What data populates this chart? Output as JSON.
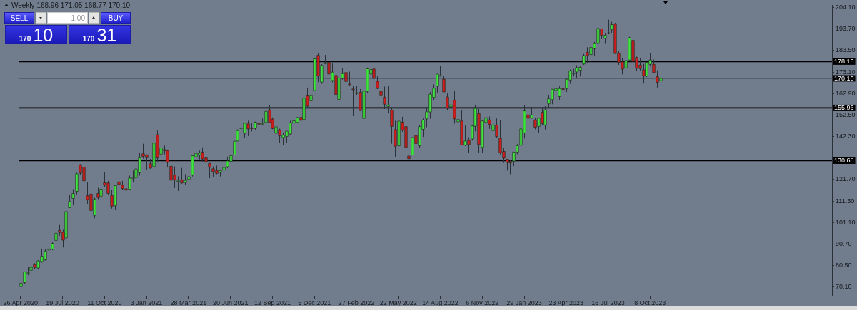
{
  "chart_data": {
    "type": "candlestick",
    "title": "Weekly 168.96 171.05 168.77 170.10",
    "annotations": [
      "SELL",
      "1.00",
      "BUY",
      "170",
      "10",
      "170",
      "31"
    ],
    "x": [
      "2020-04-26",
      "2020-05-03",
      "2020-05-10",
      "2020-05-17",
      "2020-05-24",
      "2020-05-31",
      "2020-06-07",
      "2020-06-14",
      "2020-06-21",
      "2020-06-28",
      "2020-07-05",
      "2020-07-12",
      "2020-07-19",
      "2020-07-26",
      "2020-08-02",
      "2020-08-09",
      "2020-08-16",
      "2020-08-23",
      "2020-08-30",
      "2020-09-06",
      "2020-09-13",
      "2020-09-20",
      "2020-09-27",
      "2020-10-04",
      "2020-10-11",
      "2020-10-18",
      "2020-10-25",
      "2020-11-01",
      "2020-11-08",
      "2020-11-15",
      "2020-11-22",
      "2020-11-29",
      "2020-12-06",
      "2020-12-13",
      "2020-12-20",
      "2020-12-27",
      "2021-01-03",
      "2021-01-10",
      "2021-01-17",
      "2021-01-24",
      "2021-01-31",
      "2021-02-07",
      "2021-02-14",
      "2021-02-21",
      "2021-02-28",
      "2021-03-07",
      "2021-03-14",
      "2021-03-21",
      "2021-03-28",
      "2021-04-04",
      "2021-04-11",
      "2021-04-18",
      "2021-04-25",
      "2021-05-02",
      "2021-05-09",
      "2021-05-16",
      "2021-05-23",
      "2021-05-30",
      "2021-06-06",
      "2021-06-13",
      "2021-06-20",
      "2021-06-27",
      "2021-07-04",
      "2021-07-11",
      "2021-07-18",
      "2021-07-25",
      "2021-08-01",
      "2021-08-08",
      "2021-08-15",
      "2021-08-22",
      "2021-08-29",
      "2021-09-05",
      "2021-09-12",
      "2021-09-19",
      "2021-09-26",
      "2021-10-03",
      "2021-10-10",
      "2021-10-17",
      "2021-10-24",
      "2021-10-31",
      "2021-11-07",
      "2021-11-14",
      "2021-11-21",
      "2021-11-28",
      "2021-12-05",
      "2021-12-12",
      "2021-12-19",
      "2021-12-26",
      "2022-01-02",
      "2022-01-09",
      "2022-01-16",
      "2022-01-23",
      "2022-01-30",
      "2022-02-06",
      "2022-02-13",
      "2022-02-20",
      "2022-02-27",
      "2022-03-06",
      "2022-03-13",
      "2022-03-20",
      "2022-03-27",
      "2022-04-03",
      "2022-04-10",
      "2022-04-17",
      "2022-04-24",
      "2022-05-01",
      "2022-05-08",
      "2022-05-15",
      "2022-05-22",
      "2022-05-29",
      "2022-06-05",
      "2022-06-12",
      "2022-06-19",
      "2022-06-26",
      "2022-07-03",
      "2022-07-10",
      "2022-07-17",
      "2022-07-24",
      "2022-07-31",
      "2022-08-07",
      "2022-08-14",
      "2022-08-21",
      "2022-08-28",
      "2022-09-04",
      "2022-09-11",
      "2022-09-18",
      "2022-09-25",
      "2022-10-02",
      "2022-10-09",
      "2022-10-16",
      "2022-10-23",
      "2022-10-30",
      "2022-11-06",
      "2022-11-13",
      "2022-11-20",
      "2022-11-27",
      "2022-12-04",
      "2022-12-11",
      "2022-12-18",
      "2022-12-25",
      "2023-01-01",
      "2023-01-08",
      "2023-01-15",
      "2023-01-22",
      "2023-01-29",
      "2023-02-05",
      "2023-02-12",
      "2023-02-19",
      "2023-02-26",
      "2023-03-05",
      "2023-03-12",
      "2023-03-19",
      "2023-03-26",
      "2023-04-02",
      "2023-04-09",
      "2023-04-16",
      "2023-04-23",
      "2023-04-30",
      "2023-05-07",
      "2023-05-14",
      "2023-05-21",
      "2023-05-28",
      "2023-06-04",
      "2023-06-11",
      "2023-06-18",
      "2023-06-25",
      "2023-07-02",
      "2023-07-09",
      "2023-07-16",
      "2023-07-23",
      "2023-07-30",
      "2023-08-06",
      "2023-08-13",
      "2023-08-20",
      "2023-08-27",
      "2023-09-03",
      "2023-09-10",
      "2023-09-17",
      "2023-09-24",
      "2023-10-01",
      "2023-10-08",
      "2023-10-15",
      "2023-10-22",
      "2023-10-29"
    ],
    "ohlc": [
      [
        70.4,
        74.6,
        69.5,
        72.0
      ],
      [
        72.3,
        77.6,
        71.6,
        77.4
      ],
      [
        76.8,
        79.9,
        75.8,
        77.0
      ],
      [
        78.2,
        80.4,
        77.6,
        79.6
      ],
      [
        80.9,
        81.6,
        78.9,
        79.6
      ],
      [
        79.3,
        83.0,
        79.0,
        82.7
      ],
      [
        82.4,
        88.6,
        81.8,
        84.9
      ],
      [
        83.2,
        88.3,
        82.9,
        87.4
      ],
      [
        87.9,
        92.6,
        87.3,
        88.4
      ],
      [
        88.3,
        91.8,
        87.8,
        91.0
      ],
      [
        92.5,
        96.1,
        92.0,
        95.9
      ],
      [
        97.3,
        99.9,
        94.7,
        96.3
      ],
      [
        96.4,
        97.6,
        89.1,
        92.6
      ],
      [
        93.7,
        106.4,
        93.0,
        106.3
      ],
      [
        108.2,
        114.4,
        108.0,
        111.1
      ],
      [
        112.6,
        117.0,
        109.5,
        114.9
      ],
      [
        116.0,
        124.9,
        114.6,
        124.4
      ],
      [
        128.7,
        129.0,
        123.9,
        124.8
      ],
      [
        127.6,
        137.9,
        110.9,
        121.0
      ],
      [
        113.9,
        120.5,
        110.0,
        112.0
      ],
      [
        114.7,
        118.8,
        106.1,
        106.8
      ],
      [
        104.5,
        112.9,
        103.1,
        112.3
      ],
      [
        115.0,
        117.7,
        112.2,
        113.0
      ],
      [
        113.7,
        117.0,
        112.3,
        117.0
      ],
      [
        120.1,
        125.2,
        118.2,
        119.0
      ],
      [
        120.0,
        121.0,
        114.3,
        115.0
      ],
      [
        114.0,
        116.6,
        107.7,
        108.9
      ],
      [
        109.1,
        119.2,
        107.3,
        118.7
      ],
      [
        120.5,
        122.0,
        114.1,
        119.3
      ],
      [
        118.9,
        121.0,
        116.8,
        117.3
      ],
      [
        117.2,
        117.6,
        112.6,
        116.6
      ],
      [
        117.0,
        123.5,
        116.8,
        122.3
      ],
      [
        122.3,
        125.9,
        120.2,
        122.4
      ],
      [
        122.6,
        128.4,
        122.1,
        126.7
      ],
      [
        125.0,
        134.4,
        123.5,
        132.0
      ],
      [
        134.0,
        138.8,
        131.7,
        132.7
      ],
      [
        133.5,
        133.6,
        126.4,
        132.1
      ],
      [
        129.2,
        131.5,
        126.9,
        127.1
      ],
      [
        127.8,
        139.7,
        126.9,
        139.1
      ],
      [
        143.1,
        145.1,
        130.2,
        132.0
      ],
      [
        133.8,
        137.4,
        130.9,
        136.8
      ],
      [
        136.0,
        137.9,
        133.7,
        135.4
      ],
      [
        135.5,
        136.0,
        127.4,
        129.9
      ],
      [
        128.0,
        129.7,
        118.4,
        121.3
      ],
      [
        123.8,
        127.9,
        117.6,
        121.4
      ],
      [
        120.9,
        123.2,
        116.2,
        121.0
      ],
      [
        121.4,
        127.2,
        119.7,
        120.0
      ],
      [
        120.3,
        124.2,
        118.9,
        121.2
      ],
      [
        121.7,
        124.2,
        118.9,
        123.0
      ],
      [
        123.9,
        133.0,
        123.1,
        133.0
      ],
      [
        132.5,
        135.0,
        131.7,
        134.2
      ],
      [
        133.5,
        135.5,
        131.3,
        134.3
      ],
      [
        134.8,
        137.1,
        130.2,
        131.5
      ],
      [
        132.0,
        134.1,
        126.7,
        130.2
      ],
      [
        129.4,
        129.5,
        122.3,
        127.5
      ],
      [
        126.8,
        127.9,
        122.8,
        125.4
      ],
      [
        126.0,
        128.3,
        124.2,
        124.6
      ],
      [
        125.1,
        126.2,
        123.1,
        125.9
      ],
      [
        126.2,
        128.5,
        124.8,
        127.4
      ],
      [
        127.8,
        132.6,
        127.1,
        130.5
      ],
      [
        130.3,
        134.6,
        129.2,
        133.1
      ],
      [
        133.4,
        140.0,
        133.4,
        140.0
      ],
      [
        140.1,
        145.7,
        140.1,
        145.1
      ],
      [
        146.2,
        150.0,
        143.6,
        146.4
      ],
      [
        143.8,
        148.7,
        141.7,
        148.6
      ],
      [
        148.3,
        149.8,
        142.5,
        145.9
      ],
      [
        146.4,
        148.5,
        144.7,
        146.1
      ],
      [
        146.2,
        149.4,
        145.3,
        149.1
      ],
      [
        148.5,
        151.7,
        144.5,
        148.2
      ],
      [
        148.3,
        150.9,
        147.8,
        148.6
      ],
      [
        149.0,
        155.0,
        148.6,
        154.3
      ],
      [
        155.0,
        157.3,
        148.7,
        149.0
      ],
      [
        150.6,
        151.4,
        145.8,
        146.1
      ],
      [
        143.8,
        147.5,
        141.3,
        146.9
      ],
      [
        145.5,
        146.0,
        139.1,
        142.7
      ],
      [
        141.8,
        144.2,
        138.3,
        142.9
      ],
      [
        142.3,
        144.9,
        139.2,
        144.8
      ],
      [
        143.5,
        149.8,
        143.2,
        148.7
      ],
      [
        148.7,
        153.2,
        146.4,
        149.8
      ],
      [
        149.0,
        151.6,
        148.7,
        151.3
      ],
      [
        151.4,
        151.6,
        147.5,
        150.0
      ],
      [
        150.4,
        161.0,
        147.9,
        160.6
      ],
      [
        161.7,
        165.7,
        156.4,
        156.8
      ],
      [
        159.4,
        170.3,
        157.8,
        161.8
      ],
      [
        164.3,
        179.6,
        164.3,
        179.5
      ],
      [
        181.1,
        182.1,
        168.3,
        171.1
      ],
      [
        168.3,
        176.9,
        167.5,
        176.3
      ],
      [
        177.1,
        181.3,
        176.8,
        177.6
      ],
      [
        177.8,
        182.9,
        171.0,
        172.2
      ],
      [
        169.1,
        177.2,
        168.2,
        173.1
      ],
      [
        171.5,
        172.5,
        162.3,
        162.4
      ],
      [
        160.0,
        170.4,
        154.7,
        170.3
      ],
      [
        170.2,
        175.0,
        169.5,
        172.4
      ],
      [
        172.9,
        176.7,
        168.0,
        168.6
      ],
      [
        167.4,
        173.3,
        166.5,
        167.3
      ],
      [
        165.0,
        166.7,
        152.0,
        164.9
      ],
      [
        163.1,
        166.6,
        161.9,
        163.2
      ],
      [
        163.4,
        165.0,
        154.5,
        154.7
      ],
      [
        150.9,
        164.5,
        150.1,
        164.0
      ],
      [
        164.0,
        175.3,
        163.0,
        174.7
      ],
      [
        172.2,
        179.6,
        172.1,
        174.3
      ],
      [
        174.6,
        178.5,
        169.9,
        170.1
      ],
      [
        168.7,
        171.3,
        165.0,
        165.3
      ],
      [
        163.9,
        171.5,
        161.5,
        161.8
      ],
      [
        161.1,
        166.2,
        155.4,
        157.7
      ],
      [
        156.7,
        166.5,
        153.3,
        157.3
      ],
      [
        154.9,
        155.8,
        138.8,
        147.1
      ],
      [
        145.6,
        149.8,
        132.6,
        137.6
      ],
      [
        137.8,
        149.7,
        137.1,
        149.6
      ],
      [
        149.1,
        151.7,
        144.5,
        145.4
      ],
      [
        147.0,
        149.9,
        137.1,
        137.1
      ],
      [
        132.9,
        133.9,
        129.0,
        131.6
      ],
      [
        133.4,
        141.9,
        133.3,
        141.7
      ],
      [
        142.7,
        143.5,
        133.8,
        138.9
      ],
      [
        137.8,
        147.6,
        136.9,
        147.0
      ],
      [
        145.7,
        150.9,
        142.1,
        150.2
      ],
      [
        150.7,
        156.3,
        146.7,
        154.1
      ],
      [
        154.0,
        163.6,
        150.8,
        162.5
      ],
      [
        161.0,
        167.2,
        159.6,
        165.4
      ],
      [
        166.4,
        172.2,
        163.3,
        172.1
      ],
      [
        171.5,
        176.2,
        171.3,
        171.5
      ],
      [
        169.7,
        171.1,
        163.6,
        163.6
      ],
      [
        161.2,
        162.9,
        154.7,
        155.8
      ],
      [
        156.5,
        157.8,
        152.7,
        157.4
      ],
      [
        159.6,
        164.3,
        148.4,
        150.7
      ],
      [
        149.3,
        158.7,
        148.6,
        150.4
      ],
      [
        149.7,
        154.7,
        138.0,
        138.2
      ],
      [
        138.2,
        147.5,
        137.7,
        140.1
      ],
      [
        140.4,
        141.9,
        134.4,
        138.4
      ],
      [
        141.1,
        147.9,
        140.3,
        147.3
      ],
      [
        147.2,
        157.5,
        144.7,
        155.7
      ],
      [
        153.2,
        155.5,
        134.4,
        138.4
      ],
      [
        137.1,
        150.0,
        134.6,
        149.7
      ],
      [
        149.0,
        153.6,
        146.2,
        151.3
      ],
      [
        150.2,
        151.8,
        145.9,
        148.1
      ],
      [
        145.1,
        148.7,
        140.4,
        147.8
      ],
      [
        147.8,
        150.9,
        141.6,
        142.2
      ],
      [
        141.4,
        150.0,
        133.7,
        134.5
      ],
      [
        135.1,
        136.8,
        129.6,
        131.9
      ],
      [
        131.4,
        131.4,
        125.9,
        129.9
      ],
      [
        130.3,
        130.9,
        124.2,
        129.6
      ],
      [
        130.5,
        134.9,
        128.1,
        134.8
      ],
      [
        134.8,
        138.6,
        133.8,
        137.9
      ],
      [
        138.1,
        147.2,
        137.9,
        145.9
      ],
      [
        144.0,
        157.4,
        141.3,
        154.5
      ],
      [
        152.6,
        155.2,
        150.6,
        151.0
      ],
      [
        151.0,
        156.3,
        150.9,
        152.6
      ],
      [
        150.2,
        151.3,
        145.7,
        146.7
      ],
      [
        147.1,
        151.1,
        143.9,
        151.0
      ],
      [
        153.8,
        156.3,
        147.6,
        148.5
      ],
      [
        147.8,
        156.7,
        145.6,
        155.0
      ],
      [
        157.9,
        162.1,
        156.0,
        160.3
      ],
      [
        159.9,
        165.0,
        157.7,
        164.9
      ],
      [
        164.3,
        166.8,
        161.8,
        165.2
      ],
      [
        161.4,
        166.3,
        159.8,
        165.2
      ],
      [
        165.1,
        168.2,
        163.9,
        165.0
      ],
      [
        165.2,
        169.9,
        163.6,
        169.7
      ],
      [
        169.3,
        174.3,
        167.5,
        173.6
      ],
      [
        172.5,
        174.6,
        171.0,
        172.6
      ],
      [
        173.2,
        176.4,
        170.4,
        175.2
      ],
      [
        174.0,
        175.8,
        171.0,
        175.4
      ],
      [
        177.0,
        181.8,
        176.6,
        181.0
      ],
      [
        182.6,
        185.0,
        177.3,
        181.0
      ],
      [
        181.5,
        187.0,
        181.0,
        184.9
      ],
      [
        184.4,
        187.6,
        180.6,
        186.7
      ],
      [
        186.8,
        194.5,
        185.2,
        194.0
      ],
      [
        193.8,
        193.9,
        188.9,
        190.7
      ],
      [
        189.3,
        191.7,
        186.6,
        190.7
      ],
      [
        191.9,
        198.2,
        191.2,
        191.9
      ],
      [
        193.4,
        197.2,
        191.9,
        195.8
      ],
      [
        196.1,
        196.7,
        181.9,
        182.0
      ],
      [
        182.1,
        183.1,
        176.6,
        177.8
      ],
      [
        178.0,
        179.7,
        172.0,
        174.5
      ],
      [
        175.1,
        181.1,
        173.7,
        178.6
      ],
      [
        178.9,
        190.0,
        178.6,
        189.5
      ],
      [
        188.3,
        190.0,
        173.5,
        178.2
      ],
      [
        180.1,
        180.5,
        173.6,
        175.0
      ],
      [
        176.5,
        179.7,
        173.9,
        174.8
      ],
      [
        174.2,
        177.0,
        167.6,
        171.2
      ],
      [
        171.2,
        178.0,
        170.8,
        177.5
      ],
      [
        176.8,
        182.3,
        175.8,
        178.9
      ],
      [
        176.8,
        179.1,
        172.6,
        172.9
      ],
      [
        170.9,
        174.0,
        165.7,
        168.2
      ],
      [
        168.96,
        171.05,
        168.77,
        170.1
      ]
    ],
    "colors": [
      "#3ee63e",
      "#3ee63e",
      "#3ee63e",
      "#3ee63e",
      "#d01c1c",
      "#3ee63e",
      "#3ee63e",
      "#3ee63e",
      "#3ee63e",
      "#3ee63e",
      "#3ee63e",
      "#d01c1c",
      "#d01c1c",
      "#3ee63e",
      "#3ee63e",
      "#3ee63e",
      "#3ee63e",
      "#d01c1c",
      "#d01c1c",
      "#d01c1c",
      "#d01c1c",
      "#3ee63e",
      "#d01c1c",
      "#3ee63e",
      "#d01c1c",
      "#d01c1c",
      "#d01c1c",
      "#3ee63e",
      "#d01c1c",
      "#d01c1c",
      "#d01c1c",
      "#3ee63e",
      "#3ee63e",
      "#3ee63e",
      "#3ee63e",
      "#d01c1c",
      "#d01c1c",
      "#d01c1c",
      "#3ee63e",
      "#d01c1c",
      "#3ee63e",
      "#d01c1c",
      "#d01c1c",
      "#d01c1c",
      "#d01c1c",
      "#3ee63e",
      "#d01c1c",
      "#3ee63e",
      "#3ee63e",
      "#3ee63e",
      "#3ee63e",
      "#3ee63e",
      "#d01c1c",
      "#d01c1c",
      "#d01c1c",
      "#d01c1c",
      "#d01c1c",
      "#3ee63e",
      "#3ee63e",
      "#3ee63e",
      "#3ee63e",
      "#3ee63e",
      "#3ee63e",
      "#3ee63e",
      "#3ee63e",
      "#d01c1c",
      "#d01c1c",
      "#3ee63e",
      "#d01c1c",
      "#3ee63e",
      "#3ee63e",
      "#d01c1c",
      "#d01c1c",
      "#3ee63e",
      "#d01c1c",
      "#3ee63e",
      "#3ee63e",
      "#3ee63e",
      "#3ee63e",
      "#3ee63e",
      "#d01c1c",
      "#3ee63e",
      "#d01c1c",
      "#3ee63e",
      "#3ee63e",
      "#d01c1c",
      "#3ee63e",
      "#3ee63e",
      "#d01c1c",
      "#3ee63e",
      "#d01c1c",
      "#3ee63e",
      "#3ee63e",
      "#d01c1c",
      "#d01c1c",
      "#d01c1c",
      "#3ee63e",
      "#d01c1c",
      "#3ee63e",
      "#3ee63e",
      "#3ee63e",
      "#d01c1c",
      "#d01c1c",
      "#d01c1c",
      "#d01c1c",
      "#3ee63e",
      "#d01c1c",
      "#d01c1c",
      "#3ee63e",
      "#d01c1c",
      "#d01c1c",
      "#d01c1c",
      "#3ee63e",
      "#d01c1c",
      "#3ee63e",
      "#3ee63e",
      "#3ee63e",
      "#3ee63e",
      "#3ee63e",
      "#3ee63e",
      "#3ee63e",
      "#d01c1c",
      "#d01c1c",
      "#3ee63e",
      "#d01c1c",
      "#3ee63e",
      "#d01c1c",
      "#3ee63e",
      "#d01c1c",
      "#3ee63e",
      "#3ee63e",
      "#d01c1c",
      "#3ee63e",
      "#3ee63e",
      "#d01c1c",
      "#3ee63e",
      "#d01c1c",
      "#d01c1c",
      "#d01c1c",
      "#d01c1c",
      "#d01c1c",
      "#3ee63e",
      "#3ee63e",
      "#3ee63e",
      "#3ee63e",
      "#d01c1c",
      "#3ee63e",
      "#d01c1c",
      "#3ee63e",
      "#d01c1c",
      "#3ee63e",
      "#3ee63e",
      "#3ee63e",
      "#3ee63e",
      "#3ee63e",
      "#d01c1c",
      "#3ee63e",
      "#3ee63e",
      "#3ee63e",
      "#3ee63e",
      "#3ee63e",
      "#3ee63e",
      "#d01c1c",
      "#3ee63e",
      "#3ee63e",
      "#3ee63e",
      "#d01c1c",
      "#3ee63e",
      "#3ee63e",
      "#3ee63e",
      "#d01c1c",
      "#d01c1c",
      "#d01c1c",
      "#3ee63e",
      "#3ee63e",
      "#d01c1c",
      "#d01c1c",
      "#d01c1c",
      "#d01c1c",
      "#3ee63e",
      "#3ee63e",
      "#d01c1c",
      "#d01c1c",
      "#3ee63e"
    ],
    "xlim": [
      "2020-04-22",
      "2024-10-06"
    ],
    "xticks": [
      {
        "value": "2020-04-26",
        "label": "26 Apr 2020"
      },
      {
        "value": "2020-07-19",
        "label": "19 Jul 2020"
      },
      {
        "value": "2020-10-11",
        "label": "11 Oct 2020"
      },
      {
        "value": "2021-01-03",
        "label": "3 Jan 2021"
      },
      {
        "value": "2021-03-28",
        "label": "28 Mar 2021"
      },
      {
        "value": "2021-06-20",
        "label": "20 Jun 2021"
      },
      {
        "value": "2021-09-12",
        "label": "12 Sep 2021"
      },
      {
        "value": "2021-12-05",
        "label": "5 Dec 2021"
      },
      {
        "value": "2022-02-27",
        "label": "27 Feb 2022"
      },
      {
        "value": "2022-05-22",
        "label": "22 May 2022"
      },
      {
        "value": "2022-08-14",
        "label": "14 Aug 2022"
      },
      {
        "value": "2022-11-06",
        "label": "6 Nov 2022"
      },
      {
        "value": "2023-01-29",
        "label": "29 Jan 2023"
      },
      {
        "value": "2023-04-23",
        "label": "23 Apr 2023"
      },
      {
        "value": "2023-07-16",
        "label": "16 Jul 2023"
      },
      {
        "value": "2023-10-08",
        "label": "8 Oct 2023"
      }
    ],
    "ylim": [
      66.0,
      205.1
    ],
    "yticks": [
      {
        "value": 70.1,
        "label": "70.10"
      },
      {
        "value": 80.5,
        "label": "80.50"
      },
      {
        "value": 90.7,
        "label": "90.70"
      },
      {
        "value": 101.1,
        "label": "101.10"
      },
      {
        "value": 111.3,
        "label": "111.30"
      },
      {
        "value": 121.7,
        "label": "121.70"
      },
      {
        "value": 131.9,
        "label": null
      },
      {
        "value": 142.3,
        "label": "142.30"
      },
      {
        "value": 152.5,
        "label": "152.50"
      },
      {
        "value": 162.9,
        "label": "162.90"
      },
      {
        "value": 173.1,
        "label": "173.10"
      },
      {
        "value": 183.5,
        "label": "183.50"
      },
      {
        "value": 193.7,
        "label": "193.70"
      },
      {
        "value": 204.1,
        "label": "204.10"
      }
    ],
    "ref_lines": [
      {
        "axis": "y",
        "value": 178.15,
        "label": "178.15",
        "color": "#000000"
      },
      {
        "axis": "y",
        "value": 170.1,
        "label": "170.10",
        "color": "#4c5664"
      },
      {
        "axis": "y",
        "value": 155.96,
        "label": "155.96",
        "color": "#000000"
      },
      {
        "axis": "y",
        "value": 130.68,
        "label": "130.68",
        "color": "#000000"
      }
    ]
  }
}
